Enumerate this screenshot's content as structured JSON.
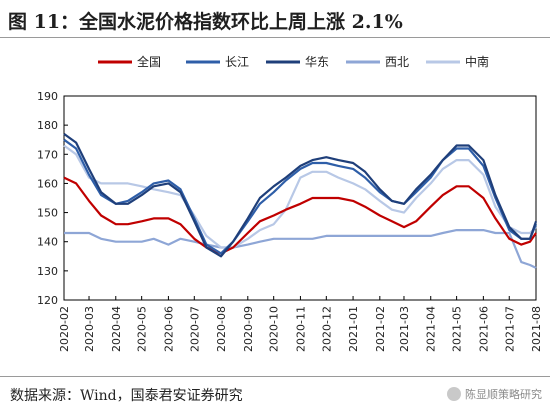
{
  "title": "图 11：全国水泥价格指数环比上周上涨 2.1%",
  "source": "数据来源：Wind，国泰君安证券研究",
  "watermark": "陈显顺策略研究",
  "colors": {
    "全国": "#c00000",
    "长江": "#2e5ea8",
    "华东": "#1f3f7a",
    "西北": "#8ea6d6",
    "中南": "#b8c8e6"
  },
  "chart_data": {
    "type": "line",
    "title": "",
    "xlabel": "",
    "ylabel": "",
    "ylim": [
      120,
      190
    ],
    "yticks": [
      120,
      130,
      140,
      150,
      160,
      170,
      180,
      190
    ],
    "xlim": [
      "2020-02",
      "2021-08"
    ],
    "xticks": [
      "2020-02",
      "2020-03",
      "2020-04",
      "2020-05",
      "2020-06",
      "2020-07",
      "2020-08",
      "2020-09",
      "2020-10",
      "2020-11",
      "2020-12",
      "2021-01",
      "2021-02",
      "2021-03",
      "2021-04",
      "2021-05",
      "2021-06",
      "2021-07",
      "2021-08"
    ],
    "legend_position": "top",
    "grid": false,
    "series": [
      {
        "name": "全国",
        "points": [
          [
            "2020-02-01",
            162
          ],
          [
            "2020-02-15",
            160
          ],
          [
            "2020-03-01",
            154
          ],
          [
            "2020-03-15",
            149
          ],
          [
            "2020-04-01",
            146
          ],
          [
            "2020-04-15",
            146
          ],
          [
            "2020-05-01",
            147
          ],
          [
            "2020-05-15",
            148
          ],
          [
            "2020-06-01",
            148
          ],
          [
            "2020-06-15",
            146
          ],
          [
            "2020-07-01",
            141
          ],
          [
            "2020-07-15",
            138
          ],
          [
            "2020-08-01",
            136
          ],
          [
            "2020-08-15",
            138
          ],
          [
            "2020-09-01",
            143
          ],
          [
            "2020-09-15",
            147
          ],
          [
            "2020-10-01",
            149
          ],
          [
            "2020-10-15",
            151
          ],
          [
            "2020-11-01",
            153
          ],
          [
            "2020-11-15",
            155
          ],
          [
            "2020-12-01",
            155
          ],
          [
            "2020-12-15",
            155
          ],
          [
            "2021-01-01",
            154
          ],
          [
            "2021-01-15",
            152
          ],
          [
            "2021-02-01",
            149
          ],
          [
            "2021-02-15",
            147
          ],
          [
            "2021-03-01",
            145
          ],
          [
            "2021-03-15",
            147
          ],
          [
            "2021-04-01",
            152
          ],
          [
            "2021-04-15",
            156
          ],
          [
            "2021-05-01",
            159
          ],
          [
            "2021-05-15",
            159
          ],
          [
            "2021-06-01",
            155
          ],
          [
            "2021-06-15",
            148
          ],
          [
            "2021-07-01",
            141
          ],
          [
            "2021-07-15",
            139
          ],
          [
            "2021-07-25",
            140
          ],
          [
            "2021-08-01",
            143
          ]
        ]
      },
      {
        "name": "长江",
        "points": [
          [
            "2020-02-01",
            175
          ],
          [
            "2020-02-15",
            172
          ],
          [
            "2020-03-01",
            163
          ],
          [
            "2020-03-15",
            156
          ],
          [
            "2020-04-01",
            153
          ],
          [
            "2020-04-15",
            154
          ],
          [
            "2020-05-01",
            157
          ],
          [
            "2020-05-15",
            160
          ],
          [
            "2020-06-01",
            161
          ],
          [
            "2020-06-15",
            158
          ],
          [
            "2020-07-01",
            148
          ],
          [
            "2020-07-15",
            139
          ],
          [
            "2020-08-01",
            136
          ],
          [
            "2020-08-15",
            140
          ],
          [
            "2020-09-01",
            147
          ],
          [
            "2020-09-15",
            153
          ],
          [
            "2020-10-01",
            157
          ],
          [
            "2020-10-15",
            161
          ],
          [
            "2020-11-01",
            165
          ],
          [
            "2020-11-15",
            167
          ],
          [
            "2020-12-01",
            167
          ],
          [
            "2020-12-15",
            166
          ],
          [
            "2021-01-01",
            165
          ],
          [
            "2021-01-15",
            162
          ],
          [
            "2021-02-01",
            157
          ],
          [
            "2021-02-15",
            154
          ],
          [
            "2021-03-01",
            153
          ],
          [
            "2021-03-15",
            157
          ],
          [
            "2021-04-01",
            162
          ],
          [
            "2021-04-15",
            168
          ],
          [
            "2021-05-01",
            172
          ],
          [
            "2021-05-15",
            172
          ],
          [
            "2021-06-01",
            166
          ],
          [
            "2021-06-15",
            155
          ],
          [
            "2021-07-01",
            144
          ],
          [
            "2021-07-15",
            141
          ],
          [
            "2021-07-25",
            141
          ],
          [
            "2021-08-01",
            146
          ]
        ]
      },
      {
        "name": "华东",
        "points": [
          [
            "2020-02-01",
            177
          ],
          [
            "2020-02-15",
            174
          ],
          [
            "2020-03-01",
            165
          ],
          [
            "2020-03-15",
            157
          ],
          [
            "2020-04-01",
            153
          ],
          [
            "2020-04-15",
            153
          ],
          [
            "2020-05-01",
            156
          ],
          [
            "2020-05-15",
            159
          ],
          [
            "2020-06-01",
            160
          ],
          [
            "2020-06-15",
            157
          ],
          [
            "2020-07-01",
            147
          ],
          [
            "2020-07-15",
            138
          ],
          [
            "2020-08-01",
            135
          ],
          [
            "2020-08-15",
            140
          ],
          [
            "2020-09-01",
            148
          ],
          [
            "2020-09-15",
            155
          ],
          [
            "2020-10-01",
            159
          ],
          [
            "2020-10-15",
            162
          ],
          [
            "2020-11-01",
            166
          ],
          [
            "2020-11-15",
            168
          ],
          [
            "2020-12-01",
            169
          ],
          [
            "2020-12-15",
            168
          ],
          [
            "2021-01-01",
            167
          ],
          [
            "2021-01-15",
            164
          ],
          [
            "2021-02-01",
            158
          ],
          [
            "2021-02-15",
            154
          ],
          [
            "2021-03-01",
            153
          ],
          [
            "2021-03-15",
            158
          ],
          [
            "2021-04-01",
            163
          ],
          [
            "2021-04-15",
            168
          ],
          [
            "2021-05-01",
            173
          ],
          [
            "2021-05-15",
            173
          ],
          [
            "2021-06-01",
            168
          ],
          [
            "2021-06-15",
            156
          ],
          [
            "2021-07-01",
            145
          ],
          [
            "2021-07-15",
            141
          ],
          [
            "2021-07-25",
            141
          ],
          [
            "2021-08-01",
            147
          ]
        ]
      },
      {
        "name": "西北",
        "points": [
          [
            "2020-02-01",
            143
          ],
          [
            "2020-02-15",
            143
          ],
          [
            "2020-03-01",
            143
          ],
          [
            "2020-03-15",
            141
          ],
          [
            "2020-04-01",
            140
          ],
          [
            "2020-04-15",
            140
          ],
          [
            "2020-05-01",
            140
          ],
          [
            "2020-05-15",
            141
          ],
          [
            "2020-06-01",
            139
          ],
          [
            "2020-06-15",
            141
          ],
          [
            "2020-07-01",
            140
          ],
          [
            "2020-07-15",
            139
          ],
          [
            "2020-08-01",
            138
          ],
          [
            "2020-08-15",
            138
          ],
          [
            "2020-09-01",
            139
          ],
          [
            "2020-09-15",
            140
          ],
          [
            "2020-10-01",
            141
          ],
          [
            "2020-10-15",
            141
          ],
          [
            "2020-11-01",
            141
          ],
          [
            "2020-11-15",
            141
          ],
          [
            "2020-12-01",
            142
          ],
          [
            "2020-12-15",
            142
          ],
          [
            "2021-01-01",
            142
          ],
          [
            "2021-01-15",
            142
          ],
          [
            "2021-02-01",
            142
          ],
          [
            "2021-02-15",
            142
          ],
          [
            "2021-03-01",
            142
          ],
          [
            "2021-03-15",
            142
          ],
          [
            "2021-04-01",
            142
          ],
          [
            "2021-04-15",
            143
          ],
          [
            "2021-05-01",
            144
          ],
          [
            "2021-05-15",
            144
          ],
          [
            "2021-06-01",
            144
          ],
          [
            "2021-06-15",
            143
          ],
          [
            "2021-07-01",
            143
          ],
          [
            "2021-07-15",
            133
          ],
          [
            "2021-07-25",
            132
          ],
          [
            "2021-08-01",
            131
          ]
        ]
      },
      {
        "name": "中南",
        "points": [
          [
            "2020-02-01",
            173
          ],
          [
            "2020-02-15",
            170
          ],
          [
            "2020-03-01",
            162
          ],
          [
            "2020-03-15",
            160
          ],
          [
            "2020-04-01",
            160
          ],
          [
            "2020-04-15",
            160
          ],
          [
            "2020-05-01",
            159
          ],
          [
            "2020-05-15",
            158
          ],
          [
            "2020-06-01",
            157
          ],
          [
            "2020-06-15",
            156
          ],
          [
            "2020-07-01",
            149
          ],
          [
            "2020-07-15",
            142
          ],
          [
            "2020-08-01",
            138
          ],
          [
            "2020-08-15",
            138
          ],
          [
            "2020-09-01",
            141
          ],
          [
            "2020-09-15",
            144
          ],
          [
            "2020-10-01",
            146
          ],
          [
            "2020-10-15",
            151
          ],
          [
            "2020-11-01",
            162
          ],
          [
            "2020-11-15",
            164
          ],
          [
            "2020-12-01",
            164
          ],
          [
            "2020-12-15",
            162
          ],
          [
            "2021-01-01",
            160
          ],
          [
            "2021-01-15",
            158
          ],
          [
            "2021-02-01",
            154
          ],
          [
            "2021-02-15",
            151
          ],
          [
            "2021-03-01",
            150
          ],
          [
            "2021-03-15",
            155
          ],
          [
            "2021-04-01",
            160
          ],
          [
            "2021-04-15",
            165
          ],
          [
            "2021-05-01",
            168
          ],
          [
            "2021-05-15",
            168
          ],
          [
            "2021-06-01",
            163
          ],
          [
            "2021-06-15",
            152
          ],
          [
            "2021-07-01",
            145
          ],
          [
            "2021-07-15",
            143
          ],
          [
            "2021-07-25",
            143
          ],
          [
            "2021-08-01",
            145
          ]
        ]
      }
    ]
  }
}
